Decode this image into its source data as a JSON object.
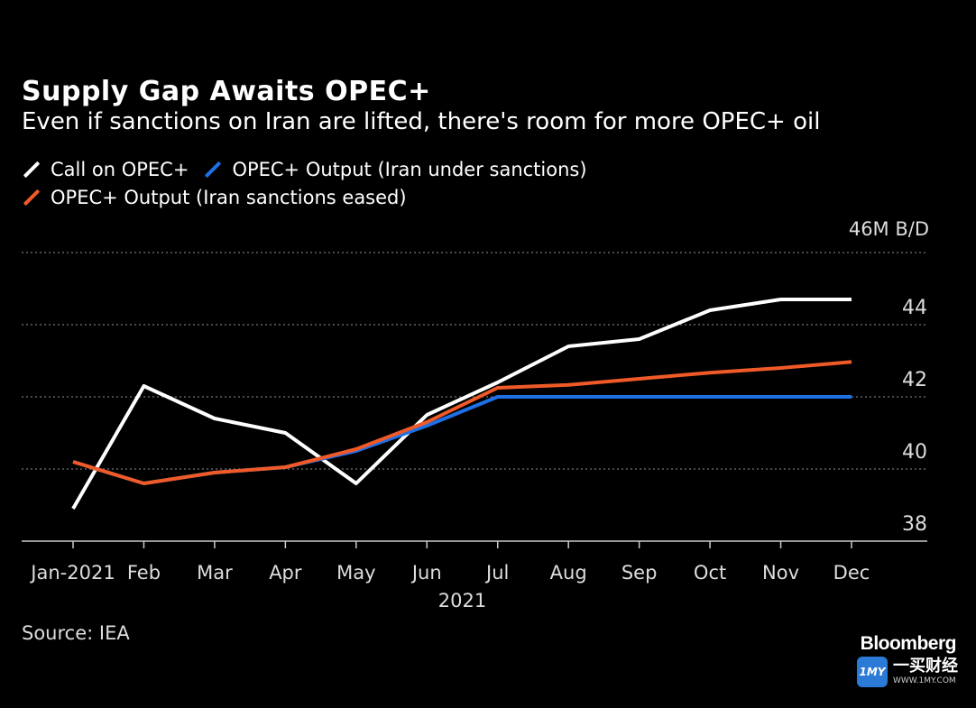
{
  "chart_data": {
    "type": "line",
    "title": "Supply Gap Awaits OPEC+",
    "subtitle": "Even if sanctions on Iran are lifted, there's room for more OPEC+ oil",
    "unit_label": "46M B/D",
    "ylim": [
      38,
      46
    ],
    "y_ticks": [
      38,
      40,
      42,
      44
    ],
    "x_tick_labels": [
      "Jan-2021",
      "Feb",
      "Mar",
      "Apr",
      "May",
      "Jun",
      "Jul",
      "Aug",
      "Sep",
      "Oct",
      "Nov",
      "Dec"
    ],
    "x_group_label": "2021",
    "series": [
      {
        "name": "Call on OPEC+",
        "color": "#ffffff",
        "values": [
          38.9,
          42.3,
          41.4,
          41.0,
          39.6,
          41.5,
          42.4,
          43.4,
          43.6,
          44.4,
          44.7,
          44.7
        ]
      },
      {
        "name": "OPEC+ Output (Iran under sanctions)",
        "color": "#1f6fe5",
        "values": [
          40.2,
          39.6,
          39.9,
          40.05,
          40.5,
          41.2,
          42.0,
          42.0,
          42.0,
          42.0,
          42.0,
          42.0
        ]
      },
      {
        "name": "OPEC+ Output (Iran sanctions eased)",
        "color": "#f05a28",
        "values": [
          40.2,
          39.6,
          39.9,
          40.05,
          40.55,
          41.3,
          42.25,
          42.33,
          42.5,
          42.67,
          42.8,
          42.97
        ]
      }
    ],
    "source": "Source: IEA"
  },
  "branding": {
    "publisher": "Bloomberg",
    "watermark_logo": "1MY",
    "watermark_cn": "一买财经",
    "watermark_url": "WWW.1MY.COM"
  }
}
